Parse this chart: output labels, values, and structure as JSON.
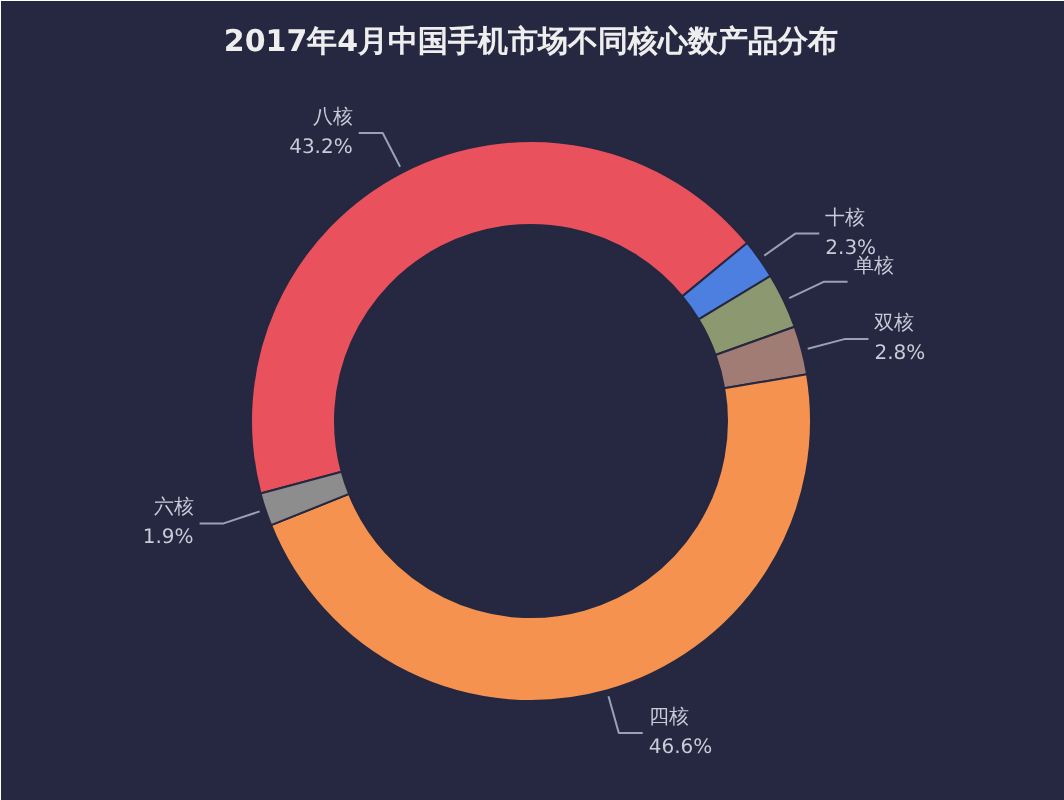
{
  "chart_data": {
    "type": "donut",
    "title": "2017年4月中国手机市场不同核心数产品分布",
    "categories": [
      "八核",
      "十核",
      "单核",
      "双核",
      "四核",
      "六核"
    ],
    "values": [
      43.2,
      2.3,
      3.2,
      2.8,
      46.6,
      1.9
    ],
    "colors": [
      "#e9525c",
      "#4d7fe0",
      "#8c9870",
      "#a17c74",
      "#f6924f",
      "#8d8d8d"
    ],
    "value_labels": [
      "43.2%",
      "2.3%",
      null,
      "2.8%",
      "46.6%",
      "1.9%"
    ]
  }
}
